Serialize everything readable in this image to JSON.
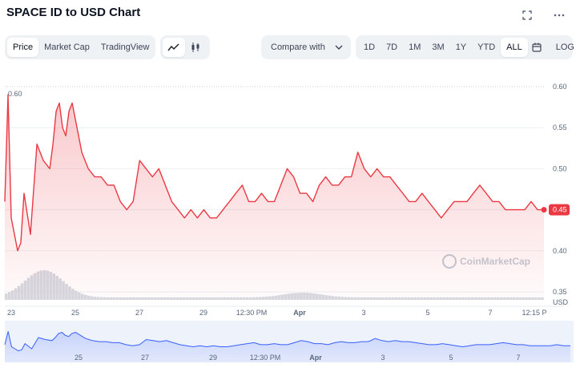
{
  "title": "SPACE ID to USD Chart",
  "toolbar": {
    "tabs": [
      {
        "label": "Price",
        "active": true
      },
      {
        "label": "Market Cap",
        "active": false
      },
      {
        "label": "TradingView",
        "active": false
      }
    ],
    "chart_modes": [
      {
        "icon": "line-chart-icon",
        "active": true
      },
      {
        "icon": "candlestick-icon",
        "active": false
      }
    ],
    "compare_label": "Compare with",
    "ranges": [
      {
        "label": "1D",
        "active": false
      },
      {
        "label": "7D",
        "active": false
      },
      {
        "label": "1M",
        "active": false
      },
      {
        "label": "3M",
        "active": false
      },
      {
        "label": "1Y",
        "active": false
      },
      {
        "label": "YTD",
        "active": false
      },
      {
        "label": "ALL",
        "active": true
      }
    ],
    "log_label": "LOG"
  },
  "watermark": "CoinMarketCap",
  "colors": {
    "line": "#ea3943",
    "volume": "#d5d9e0",
    "nav_line": "#3861fb"
  },
  "chart_data": {
    "type": "line",
    "ylabel": "USD",
    "ylim": [
      0.35,
      0.6
    ],
    "y_ticks": [
      "0.60",
      "0.55",
      "0.50",
      "0.45",
      "0.40",
      "0.35"
    ],
    "top_label": "0.60",
    "current_price": "0.45",
    "x_ticks": [
      "23",
      "25",
      "27",
      "29",
      "12:30 PM",
      "Apr",
      "3",
      "5",
      "7",
      "12:15 P"
    ],
    "nav_x_ticks": [
      "25",
      "27",
      "29",
      "12:30 PM",
      "Apr",
      "3",
      "5",
      "7"
    ],
    "x": [
      0,
      0.1,
      0.2,
      0.3,
      0.4,
      0.5,
      0.6,
      0.8,
      1.0,
      1.2,
      1.4,
      1.5,
      1.6,
      1.7,
      1.8,
      1.9,
      2.0,
      2.1,
      2.2,
      2.3,
      2.4,
      2.5,
      2.6,
      2.8,
      3.0,
      3.2,
      3.4,
      3.6,
      3.8,
      4.0,
      4.2,
      4.4,
      4.6,
      4.8,
      5.0,
      5.2,
      5.4,
      5.6,
      5.8,
      6.0,
      6.2,
      6.4,
      6.6,
      6.8,
      7.0,
      7.2,
      7.4,
      7.6,
      7.8,
      8.0,
      8.2,
      8.4,
      8.6,
      8.8,
      9.0,
      9.2,
      9.4,
      9.6,
      9.8,
      10.0,
      10.2,
      10.4,
      10.6,
      10.8,
      11.0,
      11.2,
      11.4,
      11.6,
      11.8,
      12.0,
      12.2,
      12.4,
      12.6,
      12.8,
      13.0,
      13.2,
      13.4,
      13.6,
      13.8,
      14.0,
      14.2,
      14.4,
      14.6,
      14.8,
      15.0,
      15.2,
      15.4,
      15.6,
      15.8,
      16.0,
      16.2,
      16.4,
      16.6,
      16.8
    ],
    "values": [
      0.46,
      0.59,
      0.44,
      0.42,
      0.4,
      0.41,
      0.47,
      0.42,
      0.53,
      0.51,
      0.5,
      0.53,
      0.57,
      0.58,
      0.55,
      0.54,
      0.57,
      0.58,
      0.56,
      0.54,
      0.52,
      0.51,
      0.5,
      0.49,
      0.49,
      0.48,
      0.48,
      0.46,
      0.45,
      0.46,
      0.51,
      0.5,
      0.49,
      0.5,
      0.48,
      0.46,
      0.45,
      0.44,
      0.45,
      0.44,
      0.45,
      0.44,
      0.44,
      0.45,
      0.46,
      0.47,
      0.48,
      0.46,
      0.46,
      0.47,
      0.46,
      0.46,
      0.48,
      0.5,
      0.49,
      0.47,
      0.47,
      0.46,
      0.48,
      0.49,
      0.48,
      0.48,
      0.49,
      0.49,
      0.52,
      0.5,
      0.49,
      0.5,
      0.49,
      0.49,
      0.48,
      0.47,
      0.46,
      0.46,
      0.47,
      0.46,
      0.45,
      0.44,
      0.45,
      0.46,
      0.46,
      0.46,
      0.47,
      0.48,
      0.47,
      0.46,
      0.46,
      0.45,
      0.45,
      0.45,
      0.45,
      0.46,
      0.45,
      0.45
    ],
    "grid": true
  }
}
